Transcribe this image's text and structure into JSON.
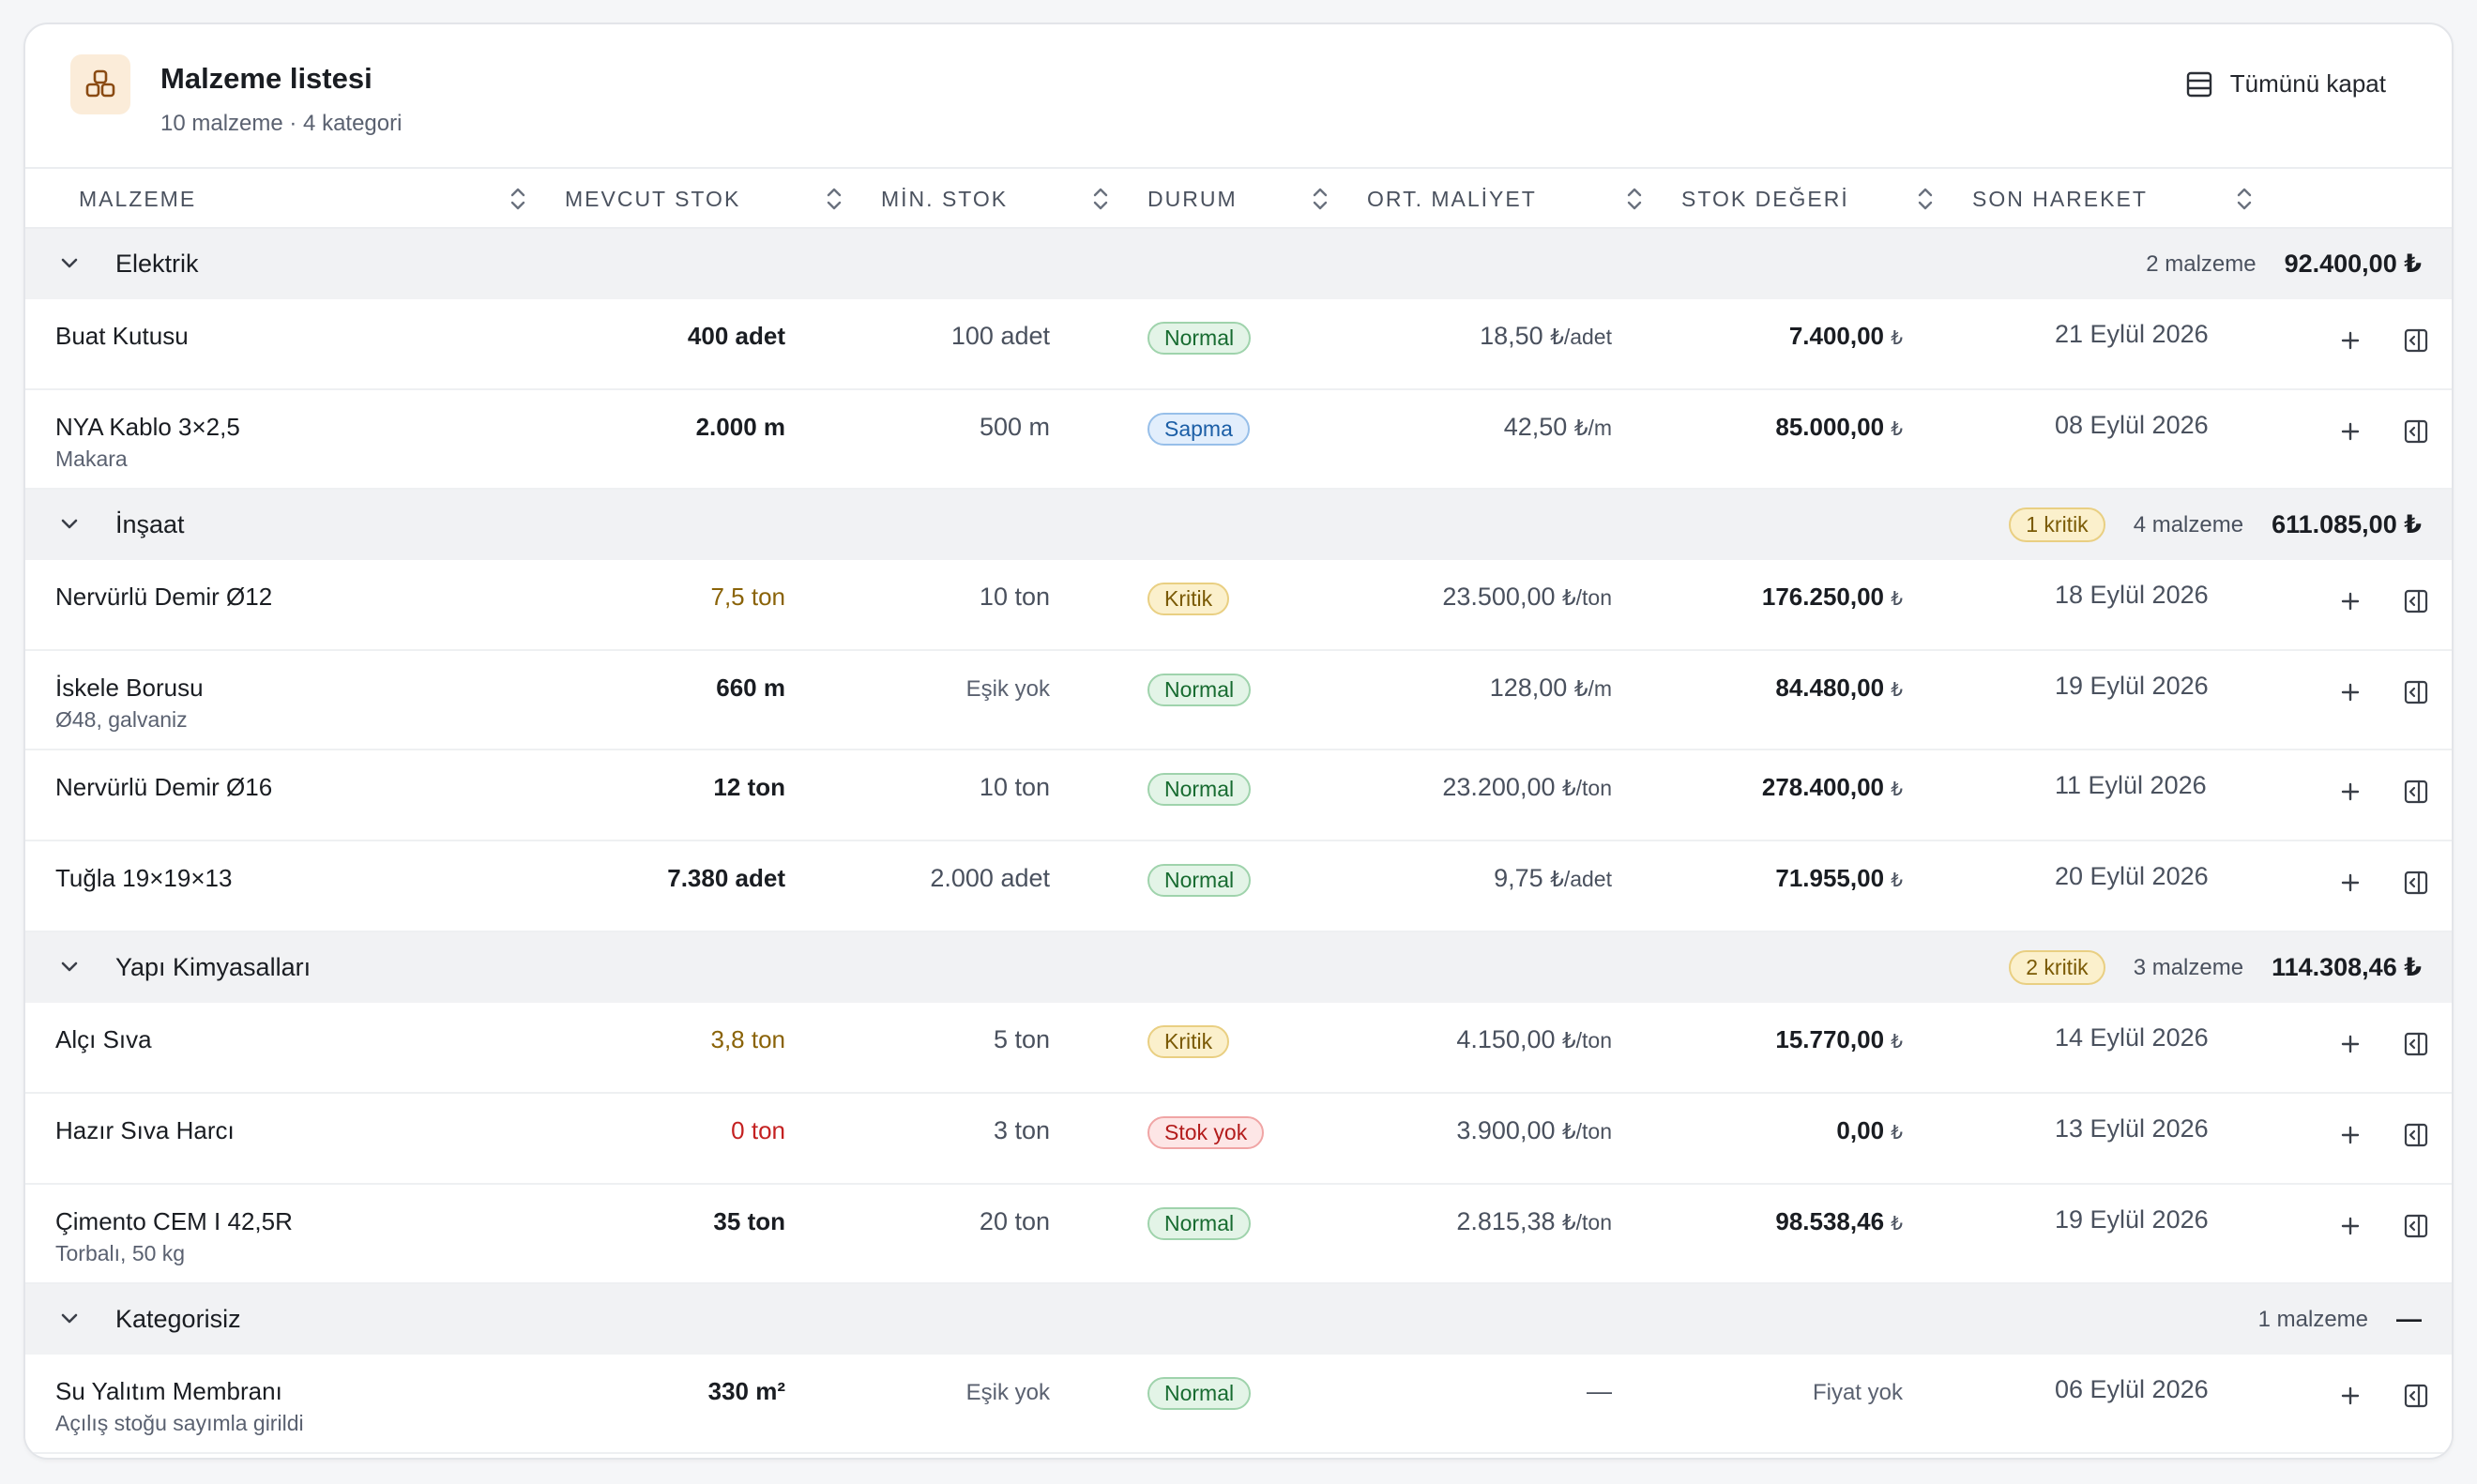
{
  "header": {
    "title": "Malzeme listesi",
    "subtitle": "10 malzeme · 4 kategori",
    "collapse_label": "Tümünü kapat"
  },
  "columns": [
    "MALZEME",
    "MEVCUT STOK",
    "MİN. STOK",
    "DURUM",
    "ORT. MALİYET",
    "STOK DEĞERİ",
    "SON HAREKET"
  ],
  "groups": [
    {
      "name": "Elektrik",
      "critical": "",
      "count": "2 malzeme",
      "total": "92.400,00 ₺",
      "rows": [
        {
          "name": "Buat Kutusu",
          "sub": "",
          "stock": "400 adet",
          "stock_state": "normal",
          "min": "100 adet",
          "status": "Normal",
          "status_type": "normal",
          "cost": "18,50",
          "cost_unit": "₺/adet",
          "value": "7.400,00",
          "value_unit": "₺",
          "date": "21 Eylül 2026"
        },
        {
          "name": "NYA Kablo 3×2,5",
          "sub": "Makara",
          "stock": "2.000 m",
          "stock_state": "normal",
          "min": "500 m",
          "status": "Sapma",
          "status_type": "sapma",
          "cost": "42,50",
          "cost_unit": "₺/m",
          "value": "85.000,00",
          "value_unit": "₺",
          "date": "08 Eylül 2026"
        }
      ]
    },
    {
      "name": "İnşaat",
      "critical": "1 kritik",
      "count": "4 malzeme",
      "total": "611.085,00 ₺",
      "rows": [
        {
          "name": "Nervürlü Demir Ø12",
          "sub": "",
          "stock": "7,5 ton",
          "stock_state": "warn",
          "min": "10 ton",
          "status": "Kritik",
          "status_type": "kritik",
          "cost": "23.500,00",
          "cost_unit": "₺/ton",
          "value": "176.250,00",
          "value_unit": "₺",
          "date": "18 Eylül 2026"
        },
        {
          "name": "İskele Borusu",
          "sub": "Ø48, galvaniz",
          "stock": "660 m",
          "stock_state": "normal",
          "min": "Eşik yok",
          "status": "Normal",
          "status_type": "normal",
          "cost": "128,00",
          "cost_unit": "₺/m",
          "value": "84.480,00",
          "value_unit": "₺",
          "date": "19 Eylül 2026"
        },
        {
          "name": "Nervürlü Demir Ø16",
          "sub": "",
          "stock": "12 ton",
          "stock_state": "normal",
          "min": "10 ton",
          "status": "Normal",
          "status_type": "normal",
          "cost": "23.200,00",
          "cost_unit": "₺/ton",
          "value": "278.400,00",
          "value_unit": "₺",
          "date": "11 Eylül 2026"
        },
        {
          "name": "Tuğla 19×19×13",
          "sub": "",
          "stock": "7.380 adet",
          "stock_state": "normal",
          "min": "2.000 adet",
          "status": "Normal",
          "status_type": "normal",
          "cost": "9,75",
          "cost_unit": "₺/adet",
          "value": "71.955,00",
          "value_unit": "₺",
          "date": "20 Eylül 2026"
        }
      ]
    },
    {
      "name": "Yapı Kimyasalları",
      "critical": "2 kritik",
      "count": "3 malzeme",
      "total": "114.308,46 ₺",
      "rows": [
        {
          "name": "Alçı Sıva",
          "sub": "",
          "stock": "3,8 ton",
          "stock_state": "warn",
          "min": "5 ton",
          "status": "Kritik",
          "status_type": "kritik",
          "cost": "4.150,00",
          "cost_unit": "₺/ton",
          "value": "15.770,00",
          "value_unit": "₺",
          "date": "14 Eylül 2026"
        },
        {
          "name": "Hazır Sıva Harcı",
          "sub": "",
          "stock": "0 ton",
          "stock_state": "zero",
          "min": "3 ton",
          "status": "Stok yok",
          "status_type": "stokyok",
          "cost": "3.900,00",
          "cost_unit": "₺/ton",
          "value": "0,00",
          "value_unit": "₺",
          "date": "13 Eylül 2026"
        },
        {
          "name": "Çimento CEM I 42,5R",
          "sub": "Torbalı, 50 kg",
          "stock": "35 ton",
          "stock_state": "normal",
          "min": "20 ton",
          "status": "Normal",
          "status_type": "normal",
          "cost": "2.815,38",
          "cost_unit": "₺/ton",
          "value": "98.538,46",
          "value_unit": "₺",
          "date": "19 Eylül 2026"
        }
      ]
    },
    {
      "name": "Kategorisiz",
      "critical": "",
      "count": "1 malzeme",
      "total": "—",
      "rows": [
        {
          "name": "Su Yalıtım Membranı",
          "sub": "Açılış stoğu sayımla girildi",
          "stock": "330 m²",
          "stock_state": "normal",
          "min": "Eşik yok",
          "status": "Normal",
          "status_type": "normal",
          "cost": "—",
          "cost_unit": "",
          "value": "Fiyat yok",
          "value_unit": "",
          "date": "06 Eylül 2026"
        }
      ]
    }
  ]
}
